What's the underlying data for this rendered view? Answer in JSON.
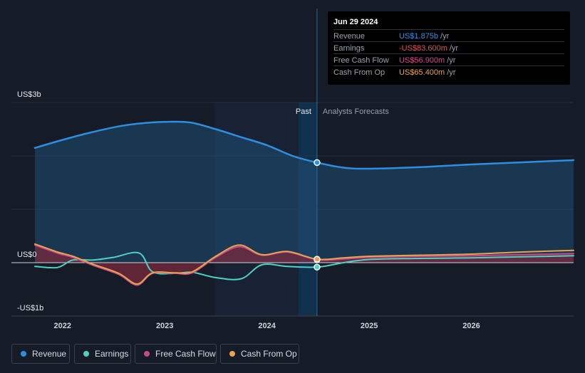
{
  "tooltip": {
    "date": "Jun 29 2024",
    "rows": [
      {
        "label": "Revenue",
        "value": "US$1.875b",
        "unit": "/yr",
        "color": "#2e8fe0"
      },
      {
        "label": "Earnings",
        "value": "-US$83.600m",
        "unit": "/yr",
        "color": "#e5534b"
      },
      {
        "label": "Free Cash Flow",
        "value": "US$56.900m",
        "unit": "/yr",
        "color": "#d2488c"
      },
      {
        "label": "Cash From Op",
        "value": "US$65.400m",
        "unit": "/yr",
        "color": "#e9a34f"
      }
    ]
  },
  "section_labels": {
    "past": "Past",
    "forecast": "Analysts Forecasts"
  },
  "legend": [
    {
      "label": "Revenue",
      "color": "#2e8fe0"
    },
    {
      "label": "Earnings",
      "color": "#4fd1c5"
    },
    {
      "label": "Free Cash Flow",
      "color": "#c74b8b"
    },
    {
      "label": "Cash From Op",
      "color": "#e9a34f"
    }
  ],
  "chart_data": {
    "type": "line",
    "x_unit": "year",
    "xlim": [
      2021.5,
      2027.0
    ],
    "ylim": [
      -1.0,
      3.0
    ],
    "y_ticks": [
      {
        "value": 3,
        "label": "US$3b"
      },
      {
        "value": 0,
        "label": "US$0"
      },
      {
        "value": -1,
        "label": "-US$1b"
      }
    ],
    "x_ticks": [
      {
        "value": 2022.0,
        "label": "2022"
      },
      {
        "value": 2023.0,
        "label": "2023"
      },
      {
        "value": 2024.0,
        "label": "2024"
      },
      {
        "value": 2025.0,
        "label": "2025"
      },
      {
        "value": 2026.0,
        "label": "2026"
      }
    ],
    "forecast_start": 2024.49,
    "shaded_from": 2023.49,
    "marker_x": 2024.49,
    "series": [
      {
        "name": "Revenue",
        "color": "#2e8fe0",
        "area": true,
        "points": [
          [
            2021.73,
            2.15
          ],
          [
            2022.0,
            2.3
          ],
          [
            2022.3,
            2.45
          ],
          [
            2022.6,
            2.57
          ],
          [
            2022.9,
            2.63
          ],
          [
            2023.1,
            2.64
          ],
          [
            2023.27,
            2.62
          ],
          [
            2023.5,
            2.5
          ],
          [
            2023.75,
            2.35
          ],
          [
            2024.0,
            2.2
          ],
          [
            2024.25,
            2.0
          ],
          [
            2024.49,
            1.875
          ],
          [
            2024.75,
            1.78
          ],
          [
            2025.0,
            1.76
          ],
          [
            2025.5,
            1.79
          ],
          [
            2026.0,
            1.84
          ],
          [
            2026.5,
            1.88
          ],
          [
            2027.0,
            1.92
          ]
        ]
      },
      {
        "name": "Earnings",
        "color": "#4fd1c5",
        "area": false,
        "points": [
          [
            2021.73,
            -0.07
          ],
          [
            2021.95,
            -0.09
          ],
          [
            2022.1,
            0.05
          ],
          [
            2022.3,
            0.05
          ],
          [
            2022.5,
            0.1
          ],
          [
            2022.75,
            0.18
          ],
          [
            2022.88,
            -0.17
          ],
          [
            2023.1,
            -0.2
          ],
          [
            2023.27,
            -0.18
          ],
          [
            2023.5,
            -0.28
          ],
          [
            2023.75,
            -0.3
          ],
          [
            2023.95,
            -0.04
          ],
          [
            2024.2,
            -0.07
          ],
          [
            2024.49,
            -0.0836
          ],
          [
            2024.75,
            -0.0
          ],
          [
            2025.0,
            0.06
          ],
          [
            2025.5,
            0.08
          ],
          [
            2026.0,
            0.09
          ],
          [
            2026.5,
            0.11
          ],
          [
            2027.0,
            0.13
          ]
        ]
      },
      {
        "name": "Free Cash Flow",
        "color": "#c74b8b",
        "area": true,
        "points": [
          [
            2021.73,
            0.33
          ],
          [
            2021.95,
            0.18
          ],
          [
            2022.1,
            0.1
          ],
          [
            2022.3,
            -0.05
          ],
          [
            2022.55,
            -0.22
          ],
          [
            2022.73,
            -0.42
          ],
          [
            2022.88,
            -0.2
          ],
          [
            2023.1,
            -0.2
          ],
          [
            2023.27,
            -0.19
          ],
          [
            2023.5,
            0.1
          ],
          [
            2023.73,
            0.3
          ],
          [
            2023.95,
            0.14
          ],
          [
            2024.2,
            0.2
          ],
          [
            2024.49,
            0.0569
          ],
          [
            2024.75,
            0.07
          ],
          [
            2025.0,
            0.1
          ],
          [
            2025.5,
            0.12
          ],
          [
            2026.0,
            0.13
          ],
          [
            2026.5,
            0.15
          ],
          [
            2027.0,
            0.17
          ]
        ]
      },
      {
        "name": "Cash From Op",
        "color": "#e9a34f",
        "area": false,
        "points": [
          [
            2021.73,
            0.35
          ],
          [
            2021.95,
            0.2
          ],
          [
            2022.1,
            0.12
          ],
          [
            2022.3,
            -0.03
          ],
          [
            2022.55,
            -0.2
          ],
          [
            2022.73,
            -0.4
          ],
          [
            2022.88,
            -0.19
          ],
          [
            2023.1,
            -0.19
          ],
          [
            2023.27,
            -0.17
          ],
          [
            2023.5,
            0.12
          ],
          [
            2023.73,
            0.33
          ],
          [
            2023.95,
            0.15
          ],
          [
            2024.2,
            0.21
          ],
          [
            2024.49,
            0.0654
          ],
          [
            2024.75,
            0.09
          ],
          [
            2025.0,
            0.12
          ],
          [
            2025.5,
            0.14
          ],
          [
            2026.0,
            0.16
          ],
          [
            2026.5,
            0.2
          ],
          [
            2027.0,
            0.23
          ]
        ]
      }
    ]
  }
}
